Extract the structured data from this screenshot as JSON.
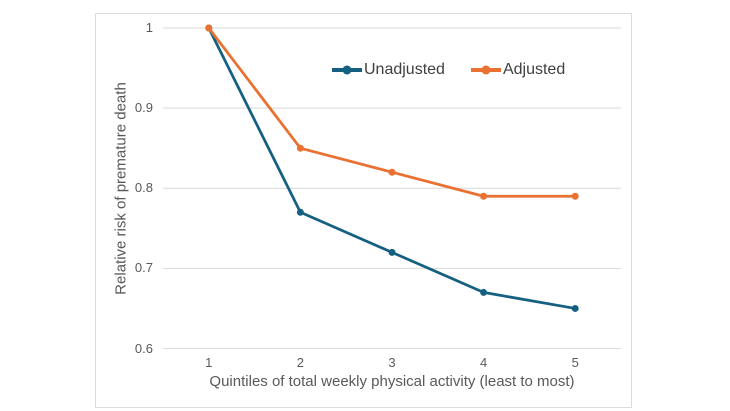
{
  "chart_data": {
    "type": "line",
    "categories": [
      "1",
      "2",
      "3",
      "4",
      "5"
    ],
    "series": [
      {
        "name": "Unadjusted",
        "values": [
          1.0,
          0.77,
          0.72,
          0.67,
          0.65
        ],
        "color": "#156082"
      },
      {
        "name": "Adjusted",
        "values": [
          1.0,
          0.85,
          0.82,
          0.79,
          0.79
        ],
        "color": "#E97132"
      }
    ],
    "title": "",
    "xlabel": "Quintiles of total weekly physical activity (least to most)",
    "ylabel": "Relative risk of premature death",
    "ylim": [
      0.6,
      1.0
    ],
    "yticks": [
      1,
      0.9,
      0.8,
      0.7,
      0.6
    ],
    "ytick_labels": [
      "1",
      "0.9",
      "0.8",
      "0.7",
      "0.6"
    ],
    "grid": true,
    "gridline_color": "#d9d9d9",
    "axis_text_color": "#595959",
    "legend_text_color": "#404040",
    "legend_position": "inside-top-right"
  }
}
